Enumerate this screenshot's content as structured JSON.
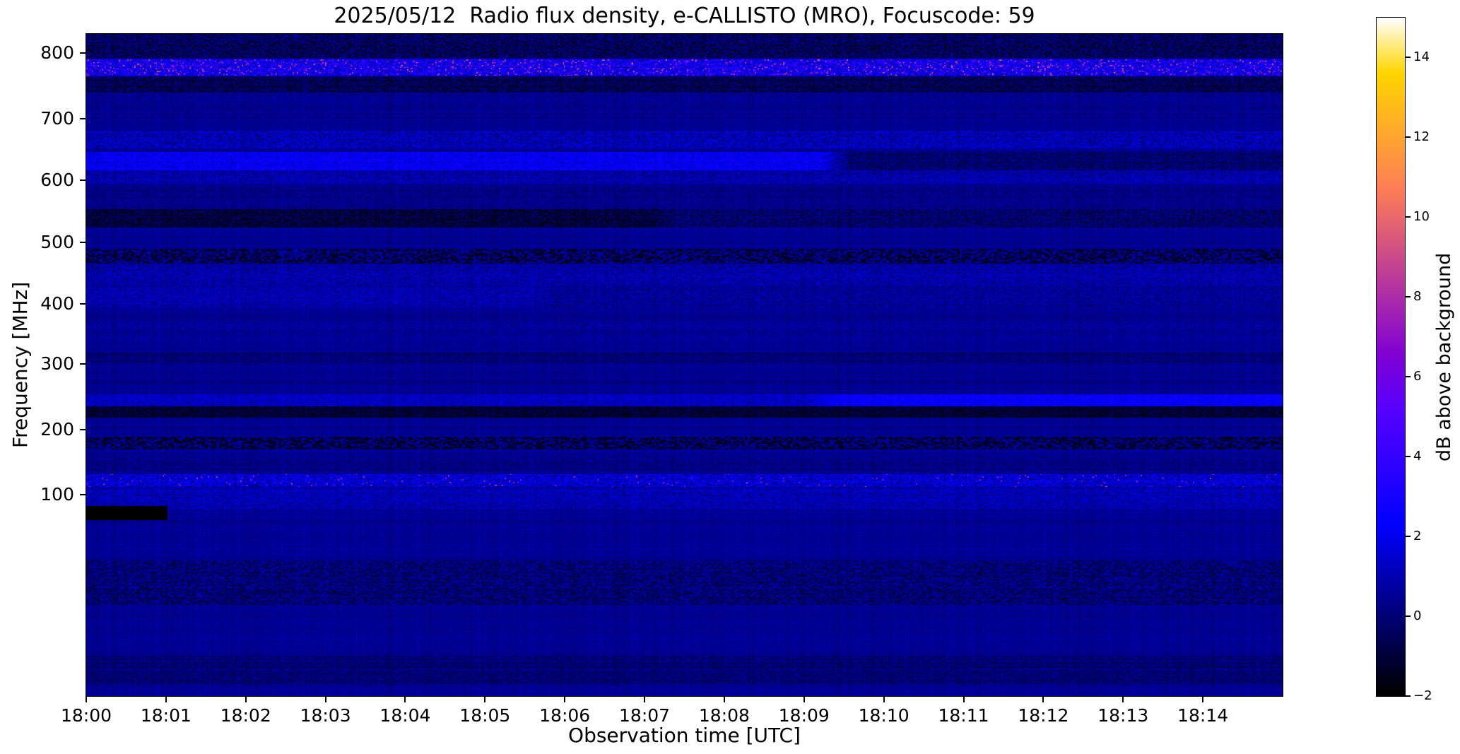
{
  "chart_data": {
    "type": "heatmap",
    "title": "2025/05/12  Radio flux density, e-CALLISTO (MRO), Focuscode: 59",
    "xlabel": "Observation time [UTC]",
    "ylabel": "Frequency [MHz]",
    "x_ticks": [
      "18:00",
      "18:01",
      "18:02",
      "18:03",
      "18:04",
      "18:05",
      "18:06",
      "18:07",
      "18:08",
      "18:09",
      "18:10",
      "18:11",
      "18:12",
      "18:13",
      "18:14"
    ],
    "x_range_minutes": [
      0,
      15
    ],
    "y_ticks": [
      100,
      200,
      300,
      400,
      500,
      600,
      700,
      800
    ],
    "freq_axis_mapping": [
      [
        832,
        0.0
      ],
      [
        800,
        0.029
      ],
      [
        700,
        0.128
      ],
      [
        600,
        0.221
      ],
      [
        500,
        0.315
      ],
      [
        400,
        0.408
      ],
      [
        300,
        0.498
      ],
      [
        200,
        0.598
      ],
      [
        100,
        0.696
      ],
      [
        45,
        1.0
      ]
    ],
    "grid": false,
    "legend": "none",
    "colorbar": {
      "label": "dB above background",
      "ticks": [
        -2,
        0,
        2,
        4,
        6,
        8,
        10,
        12,
        14
      ],
      "vmin": -2,
      "vmax": 15,
      "colormap": "gnuplot2"
    },
    "background_level_db": 0.45,
    "noise": {
      "row": 0.22,
      "column": 0.18,
      "pixel": 0.3
    },
    "bands": [
      {
        "freq_mhz": [
          793,
          832
        ],
        "offset_db": -0.9,
        "noise_db": 1.4,
        "description": "dark mottled cap with blue speckle at top edge"
      },
      {
        "freq_mhz": [
          766,
          790
        ],
        "offset_db": 2.0,
        "noise_db": 2.4,
        "speckle": {
          "p": 0.09,
          "amp_db": 4.5
        },
        "description": "strong intermittent RFI band ~775 MHz with pink/magenta bursts"
      },
      {
        "freq_mhz": [
          740,
          764
        ],
        "offset_db": -1.1,
        "noise_db": 1.1,
        "description": "dark speckled band ~750 MHz"
      },
      {
        "freq_mhz": [
          700,
          738
        ],
        "offset_db": -0.1,
        "noise_db": 0.45,
        "description": "quiet region"
      },
      {
        "freq_mhz": [
          652,
          680
        ],
        "offset_db": 0.5,
        "noise_db": 1.3,
        "description": "blue/black mottled band ~665 MHz"
      },
      {
        "freq_mhz": [
          616,
          646
        ],
        "offset_db": 1.7,
        "noise_db": 0.9,
        "time_profile": {
          "split_min": 9.2,
          "offset_after_db": -0.6
        },
        "description": "bright blue band ~630 MHz that darkens after 18:09"
      },
      {
        "freq_mhz": [
          594,
          615
        ],
        "offset_db": 0.3,
        "noise_db": 0.9,
        "description": "mottled rows ~605 MHz"
      },
      {
        "freq_mhz": [
          556,
          590
        ],
        "offset_db": -0.2,
        "noise_db": 0.55,
        "description": "slightly mottled region"
      },
      {
        "freq_mhz": [
          524,
          554
        ],
        "offset_db": -1.4,
        "noise_db": 1.1,
        "time_profile": {
          "split_min": 7.0,
          "offset_after_db": -0.7
        },
        "description": "dark band ~540 MHz, deepest before 18:07"
      },
      {
        "freq_mhz": [
          466,
          490
        ],
        "offset_db": -1.0,
        "noise_db": 1.2,
        "dotted": true,
        "description": "dark dotted band ~478 MHz"
      },
      {
        "freq_mhz": [
          430,
          464
        ],
        "offset_db": 0.35,
        "noise_db": 0.95,
        "description": "mottled blue rows ~445 MHz"
      },
      {
        "freq_mhz": [
          394,
          428
        ],
        "offset_db": 0.45,
        "noise_db": 0.8,
        "time_profile": {
          "split_min": 5.5,
          "offset_after_db": 0.1
        },
        "description": "faint blue mottling ~410 MHz, brighter on left"
      },
      {
        "freq_mhz": [
          344,
          370
        ],
        "offset_db": 0.1,
        "noise_db": 0.5,
        "description": "faint texture"
      },
      {
        "freq_mhz": [
          302,
          318
        ],
        "offset_db": -0.5,
        "noise_db": 0.6,
        "description": "faint dark line ~310 MHz"
      },
      {
        "freq_mhz": [
          236,
          254
        ],
        "offset_db": 0.8,
        "noise_db": 0.7,
        "time_profile": {
          "split_min": 9.0,
          "offset_after_db": 1.9
        },
        "description": "blue line ~245 MHz that brightens after 18:09"
      },
      {
        "freq_mhz": [
          218,
          236
        ],
        "offset_db": -1.6,
        "noise_db": 0.9,
        "description": "dark band ~228 MHz"
      },
      {
        "freq_mhz": [
          170,
          190
        ],
        "offset_db": -1.0,
        "noise_db": 1.0,
        "dotted": true,
        "description": "dotted dark band ~180 MHz"
      },
      {
        "freq_mhz": [
          136,
          160
        ],
        "offset_db": -0.2,
        "noise_db": 0.5,
        "description": "faint texture"
      },
      {
        "freq_mhz": [
          112,
          132
        ],
        "offset_db": 1.1,
        "noise_db": 1.6,
        "speckle": {
          "p": 0.02,
          "amp_db": 4.8
        },
        "description": "RFI band ~120 MHz with sporadic bright blue/pink bursts"
      },
      {
        "freq_mhz": [
          96,
          111
        ],
        "offset_db": 0.5,
        "noise_db": 0.9,
        "description": "blue mottled rows ~105 MHz"
      },
      {
        "freq_mhz": [
          70,
          82
        ],
        "offset_db": -0.5,
        "noise_db": 0.9,
        "dotted": true,
        "description": "darker textured band ~75 MHz"
      },
      {
        "freq_mhz": [
          48,
          56
        ],
        "offset_db": -0.5,
        "noise_db": 0.7,
        "description": "dark rows near bottom edge"
      }
    ],
    "features": [
      {
        "time_min": [
          0.0,
          1.02
        ],
        "freq_mhz": [
          93,
          97
        ],
        "value_db": -2.0,
        "description": "solid black dropout bar at bottom left, 18:00 to ~18:01"
      }
    ]
  }
}
